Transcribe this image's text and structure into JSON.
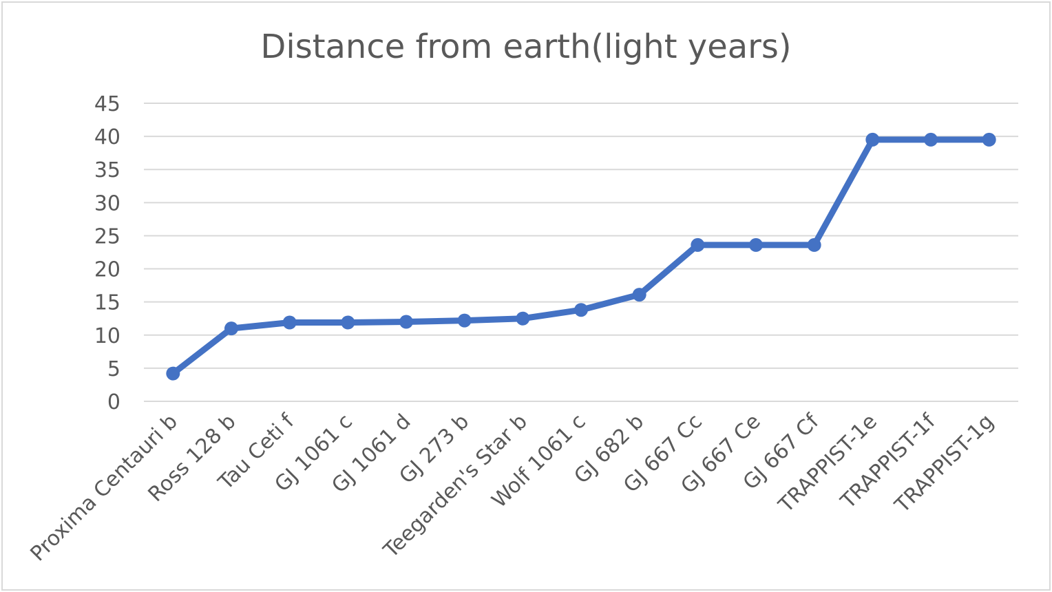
{
  "chart_data": {
    "type": "line",
    "title": "Distance from earth(light years)",
    "xlabel": "",
    "ylabel": "",
    "categories": [
      "Proxima Centauri b",
      "Ross 128 b",
      "Tau Ceti f",
      "GJ 1061 c",
      "GJ 1061 d",
      "GJ 273 b",
      "Teegarden's Star b",
      "Wolf 1061 c",
      "GJ 682 b",
      "GJ 667 Cc",
      "GJ 667 Ce",
      "GJ 667 Cf",
      "TRAPPIST-1e",
      "TRAPPIST-1f",
      "TRAPPIST-1g"
    ],
    "series": [
      {
        "values": [
          4.2,
          11,
          11.9,
          11.9,
          12,
          12.2,
          12.5,
          13.8,
          16.1,
          23.6,
          23.6,
          23.6,
          39.5,
          39.5,
          39.5
        ],
        "color": "#4472c4"
      }
    ],
    "ylim": [
      0,
      45
    ],
    "yticks": [
      0,
      5,
      10,
      15,
      20,
      25,
      30,
      35,
      40,
      45
    ],
    "grid": true,
    "legend": "none"
  }
}
